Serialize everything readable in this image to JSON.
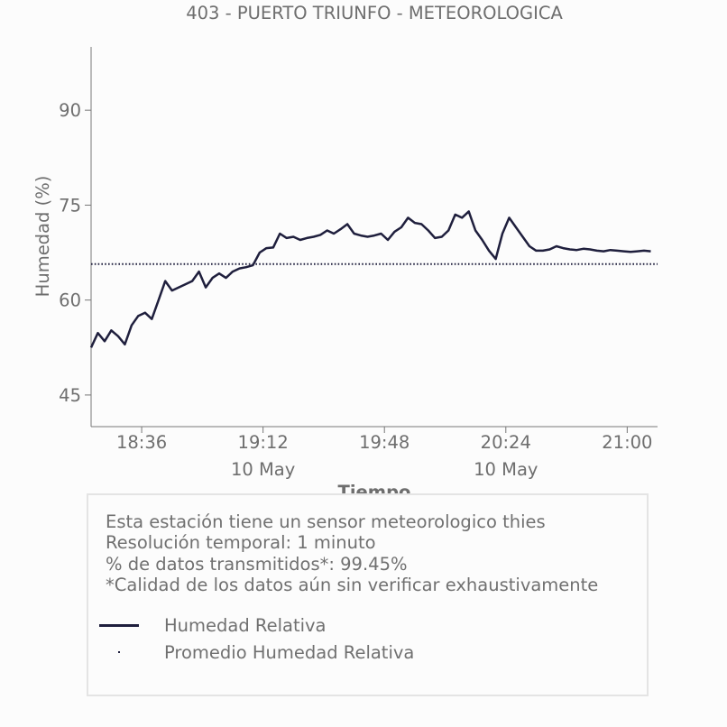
{
  "chart_data": {
    "type": "line",
    "title": "403 - PUERTO TRIUNFO - METEOROLOGICA",
    "xlabel": "Tiempo",
    "ylabel": "Humedad (%)",
    "ylim": [
      40,
      100
    ],
    "xlim": [
      "2024-05-10 18:21",
      "2024-05-10 21:09"
    ],
    "yticks": [
      "45",
      "60",
      "75",
      "90"
    ],
    "xticks": [
      {
        "time": "18:36",
        "label": "18:36",
        "sublabel": ""
      },
      {
        "time": "19:12",
        "label": "19:12",
        "sublabel": "10 May"
      },
      {
        "time": "19:48",
        "label": "19:48",
        "sublabel": ""
      },
      {
        "time": "20:24",
        "label": "20:24",
        "sublabel": "10 May"
      },
      {
        "time": "21:00",
        "label": "21:00",
        "sublabel": ""
      }
    ],
    "grid": false,
    "series": [
      {
        "name": "Humedad Relativa",
        "style": "solid",
        "color": "#1f1f3d",
        "x": [
          "18:21",
          "18:23",
          "18:25",
          "18:27",
          "18:29",
          "18:31",
          "18:33",
          "18:35",
          "18:37",
          "18:39",
          "18:41",
          "18:43",
          "18:45",
          "18:47",
          "18:49",
          "18:51",
          "18:53",
          "18:55",
          "18:57",
          "18:59",
          "19:01",
          "19:03",
          "19:05",
          "19:07",
          "19:09",
          "19:11",
          "19:13",
          "19:15",
          "19:17",
          "19:19",
          "19:21",
          "19:23",
          "19:25",
          "19:27",
          "19:29",
          "19:31",
          "19:33",
          "19:35",
          "19:37",
          "19:39",
          "19:41",
          "19:43",
          "19:45",
          "19:47",
          "19:49",
          "19:51",
          "19:53",
          "19:55",
          "19:57",
          "19:59",
          "20:01",
          "20:03",
          "20:05",
          "20:07",
          "20:09",
          "20:11",
          "20:13",
          "20:15",
          "20:17",
          "20:19",
          "20:21",
          "20:23",
          "20:25",
          "20:27",
          "20:29",
          "20:31",
          "20:33",
          "20:35",
          "20:37",
          "20:39",
          "20:41",
          "20:43",
          "20:45",
          "20:47",
          "20:49",
          "20:51",
          "20:53",
          "20:55",
          "20:57",
          "20:59",
          "21:01",
          "21:03",
          "21:05",
          "21:07"
        ],
        "values": [
          52.5,
          54.8,
          53.5,
          55.2,
          54.3,
          53.0,
          56.0,
          57.5,
          58.0,
          57.0,
          60.0,
          63.0,
          61.5,
          62.0,
          62.5,
          63.0,
          64.5,
          62.0,
          63.5,
          64.2,
          63.5,
          64.5,
          65.0,
          65.2,
          65.5,
          67.5,
          68.2,
          68.3,
          70.5,
          69.8,
          70.0,
          69.5,
          69.8,
          70.0,
          70.3,
          71.0,
          70.5,
          71.2,
          72.0,
          70.5,
          70.2,
          70.0,
          70.2,
          70.5,
          69.5,
          70.8,
          71.5,
          73.0,
          72.2,
          72.0,
          71.0,
          69.8,
          70.0,
          71.0,
          73.5,
          73.0,
          74.0,
          71.0,
          69.5,
          67.8,
          66.5,
          70.5,
          73.0,
          71.5,
          70.0,
          68.5,
          67.8,
          67.8,
          68.0,
          68.5,
          68.2,
          68.0,
          67.9,
          68.1,
          68.0,
          67.8,
          67.7,
          67.9,
          67.8,
          67.7,
          67.6,
          67.7,
          67.8,
          67.7
        ]
      },
      {
        "name": "Promedio Humedad Relativa",
        "style": "dotted",
        "color": "#1f1f3d",
        "x": [
          "18:21",
          "21:09"
        ],
        "values": [
          65.7,
          65.7
        ]
      }
    ],
    "legend": {
      "placement": "bottom"
    }
  },
  "info": {
    "lines": [
      "Esta estación tiene un sensor meteorologico thies",
      "Resolución temporal: 1 minuto",
      "% de datos transmitidos*: 99.45%",
      "*Calidad de los datos aún sin verificar exhaustivamente"
    ]
  },
  "colors": {
    "series": "#1f1f3d",
    "text": "#707070",
    "axis": "#777777",
    "box_border": "#e4e4e4"
  }
}
